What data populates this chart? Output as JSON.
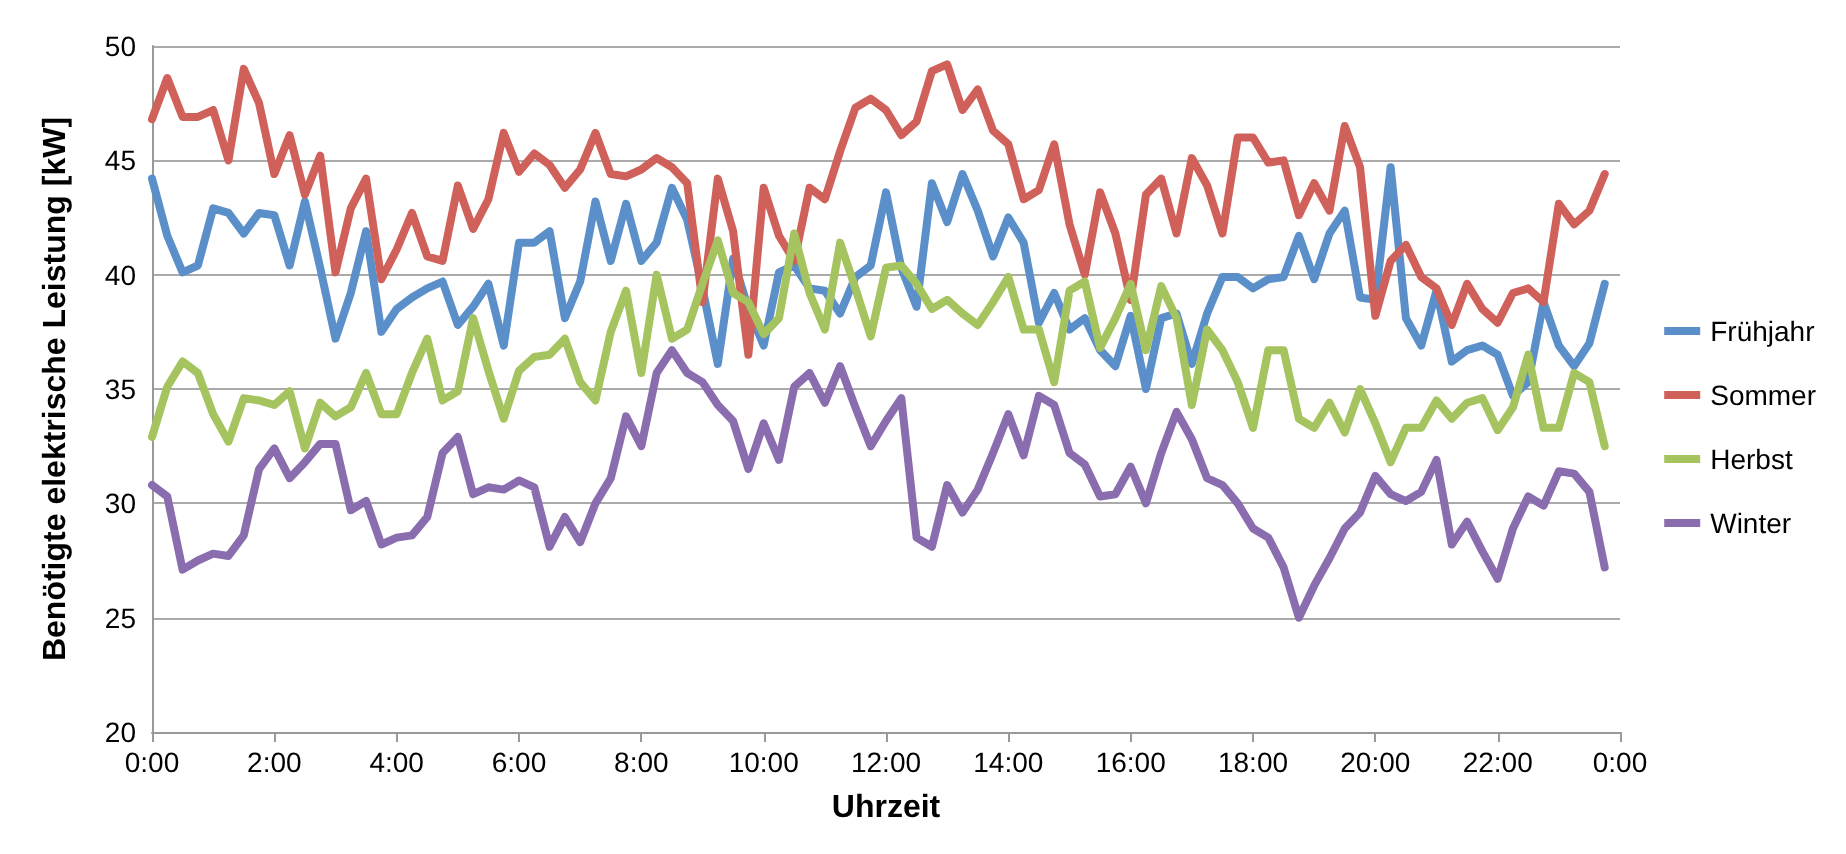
{
  "chart_data": {
    "type": "line",
    "xlabel": "Uhrzeit",
    "ylabel": "Benötigte elektrische Leistung [kW]",
    "x": [
      0,
      0.25,
      0.5,
      0.75,
      1,
      1.25,
      1.5,
      1.75,
      2,
      2.25,
      2.5,
      2.75,
      3,
      3.25,
      3.5,
      3.75,
      4,
      4.25,
      4.5,
      4.75,
      5,
      5.25,
      5.5,
      5.75,
      6,
      6.25,
      6.5,
      6.75,
      7,
      7.25,
      7.5,
      7.75,
      8,
      8.25,
      8.5,
      8.75,
      9,
      9.25,
      9.5,
      9.75,
      10,
      10.25,
      10.5,
      10.75,
      11,
      11.25,
      11.5,
      11.75,
      12,
      12.25,
      12.5,
      12.75,
      13,
      13.25,
      13.5,
      13.75,
      14,
      14.25,
      14.5,
      14.75,
      15,
      15.25,
      15.5,
      15.75,
      16,
      16.25,
      16.5,
      16.75,
      17,
      17.25,
      17.5,
      17.75,
      18,
      18.25,
      18.5,
      18.75,
      19,
      19.25,
      19.5,
      19.75,
      20,
      20.25,
      20.5,
      20.75,
      21,
      21.25,
      21.5,
      21.75,
      22,
      22.25,
      22.5,
      22.75,
      23,
      23.25,
      23.5,
      23.75
    ],
    "series": [
      {
        "name": "Frühjahr",
        "color": "#5b8fc9",
        "values": [
          44.2,
          41.7,
          40.1,
          40.4,
          42.9,
          42.7,
          41.8,
          42.7,
          42.6,
          40.4,
          43.2,
          40.3,
          37.2,
          39.2,
          41.9,
          37.5,
          38.5,
          39.0,
          39.4,
          39.7,
          37.8,
          38.6,
          39.6,
          36.9,
          41.4,
          41.4,
          41.9,
          38.1,
          39.7,
          43.2,
          40.6,
          43.1,
          40.6,
          41.4,
          43.8,
          42.4,
          39.4,
          36.1,
          40.7,
          38.5,
          36.9,
          40.1,
          40.4,
          39.4,
          39.3,
          38.3,
          39.9,
          40.4,
          43.6,
          40.3,
          38.6,
          44.0,
          42.3,
          44.4,
          42.8,
          40.8,
          42.5,
          41.4,
          37.9,
          39.2,
          37.6,
          38.1,
          36.7,
          36.0,
          38.2,
          35.0,
          38.1,
          38.3,
          36.1,
          38.3,
          39.9,
          39.9,
          39.4,
          39.8,
          39.9,
          41.7,
          39.8,
          41.8,
          42.8,
          39.0,
          38.9,
          44.7,
          38.1,
          36.9,
          39.3,
          36.2,
          36.7,
          36.9,
          36.5,
          34.7,
          35.3,
          38.8,
          36.9,
          36.0,
          37.0,
          39.6
        ]
      },
      {
        "name": "Sommer",
        "color": "#d0605a",
        "values": [
          46.8,
          48.6,
          46.9,
          46.9,
          47.2,
          45.0,
          49.0,
          47.5,
          44.4,
          46.1,
          43.5,
          45.2,
          40.1,
          42.9,
          44.2,
          39.8,
          41.1,
          42.7,
          40.8,
          40.6,
          43.9,
          42.0,
          43.3,
          46.2,
          44.5,
          45.3,
          44.8,
          43.8,
          44.6,
          46.2,
          44.4,
          44.3,
          44.6,
          45.1,
          44.7,
          44.0,
          38.8,
          44.2,
          41.9,
          36.5,
          43.8,
          41.7,
          40.6,
          43.8,
          43.3,
          45.4,
          47.3,
          47.7,
          47.2,
          46.1,
          46.7,
          48.9,
          49.2,
          47.2,
          48.1,
          46.3,
          45.7,
          43.3,
          43.7,
          45.7,
          42.2,
          40.0,
          43.6,
          41.8,
          38.9,
          43.5,
          44.2,
          41.8,
          45.1,
          43.9,
          41.8,
          46.0,
          46.0,
          44.9,
          45.0,
          42.6,
          44.0,
          42.8,
          46.5,
          44.7,
          38.2,
          40.6,
          41.3,
          39.9,
          39.4,
          37.8,
          39.6,
          38.5,
          37.9,
          39.2,
          39.4,
          38.8,
          43.1,
          42.2,
          42.8,
          44.4
        ]
      },
      {
        "name": "Herbst",
        "color": "#a5c45f",
        "values": [
          32.9,
          35.1,
          36.2,
          35.7,
          33.9,
          32.7,
          34.6,
          34.5,
          34.3,
          34.9,
          32.4,
          34.4,
          33.8,
          34.2,
          35.7,
          33.9,
          33.9,
          35.7,
          37.2,
          34.5,
          34.9,
          38.1,
          35.8,
          33.7,
          35.8,
          36.4,
          36.5,
          37.2,
          35.3,
          34.5,
          37.5,
          39.3,
          35.7,
          40.0,
          37.2,
          37.6,
          39.6,
          41.5,
          39.2,
          38.8,
          37.4,
          38.1,
          41.8,
          39.2,
          37.6,
          41.4,
          39.4,
          37.3,
          40.3,
          40.4,
          39.6,
          38.5,
          38.9,
          38.3,
          37.8,
          38.8,
          39.9,
          37.6,
          37.6,
          35.3,
          39.3,
          39.7,
          36.8,
          38.1,
          39.6,
          36.7,
          39.5,
          38.1,
          34.3,
          37.6,
          36.7,
          35.3,
          33.3,
          36.7,
          36.7,
          33.7,
          33.3,
          34.4,
          33.1,
          35.0,
          33.5,
          31.8,
          33.3,
          33.3,
          34.5,
          33.7,
          34.4,
          34.6,
          33.2,
          34.2,
          36.5,
          33.3,
          33.3,
          35.7,
          35.3,
          32.5
        ]
      },
      {
        "name": "Winter",
        "color": "#8a6daf",
        "values": [
          30.8,
          30.3,
          27.1,
          27.5,
          27.8,
          27.7,
          28.6,
          31.5,
          32.4,
          31.1,
          31.8,
          32.6,
          32.6,
          29.7,
          30.1,
          28.2,
          28.5,
          28.6,
          29.4,
          32.2,
          32.9,
          30.4,
          30.7,
          30.6,
          31.0,
          30.7,
          28.1,
          29.4,
          28.3,
          30.0,
          31.1,
          33.8,
          32.5,
          35.7,
          36.7,
          35.7,
          35.3,
          34.3,
          33.6,
          31.5,
          33.5,
          31.9,
          35.1,
          35.7,
          34.4,
          36.0,
          34.2,
          32.5,
          33.6,
          34.6,
          28.5,
          28.1,
          30.8,
          29.6,
          30.6,
          32.2,
          33.9,
          32.1,
          34.7,
          34.3,
          32.2,
          31.7,
          30.3,
          30.4,
          31.6,
          30.0,
          32.2,
          34.0,
          32.8,
          31.1,
          30.8,
          30.0,
          28.9,
          28.5,
          27.2,
          25.0,
          26.4,
          27.6,
          28.9,
          29.6,
          31.2,
          30.4,
          30.1,
          30.5,
          31.9,
          28.2,
          29.2,
          27.9,
          26.7,
          28.9,
          30.3,
          29.9,
          31.4,
          31.3,
          30.5,
          27.2
        ]
      }
    ],
    "xlim": [
      0,
      24
    ],
    "xticks": [
      {
        "value": 0,
        "label": "0:00"
      },
      {
        "value": 2,
        "label": "2:00"
      },
      {
        "value": 4,
        "label": "4:00"
      },
      {
        "value": 6,
        "label": "6:00"
      },
      {
        "value": 8,
        "label": "8:00"
      },
      {
        "value": 10,
        "label": "10:00"
      },
      {
        "value": 12,
        "label": "12:00"
      },
      {
        "value": 14,
        "label": "14:00"
      },
      {
        "value": 16,
        "label": "16:00"
      },
      {
        "value": 18,
        "label": "18:00"
      },
      {
        "value": 20,
        "label": "20:00"
      },
      {
        "value": 22,
        "label": "22:00"
      },
      {
        "value": 24,
        "label": "0:00"
      }
    ],
    "ylim": [
      20,
      50
    ],
    "yticks": [
      20,
      25,
      30,
      35,
      40,
      45,
      50
    ],
    "grid": "y",
    "legend": "right",
    "marker": "none",
    "line_style": "solid"
  }
}
